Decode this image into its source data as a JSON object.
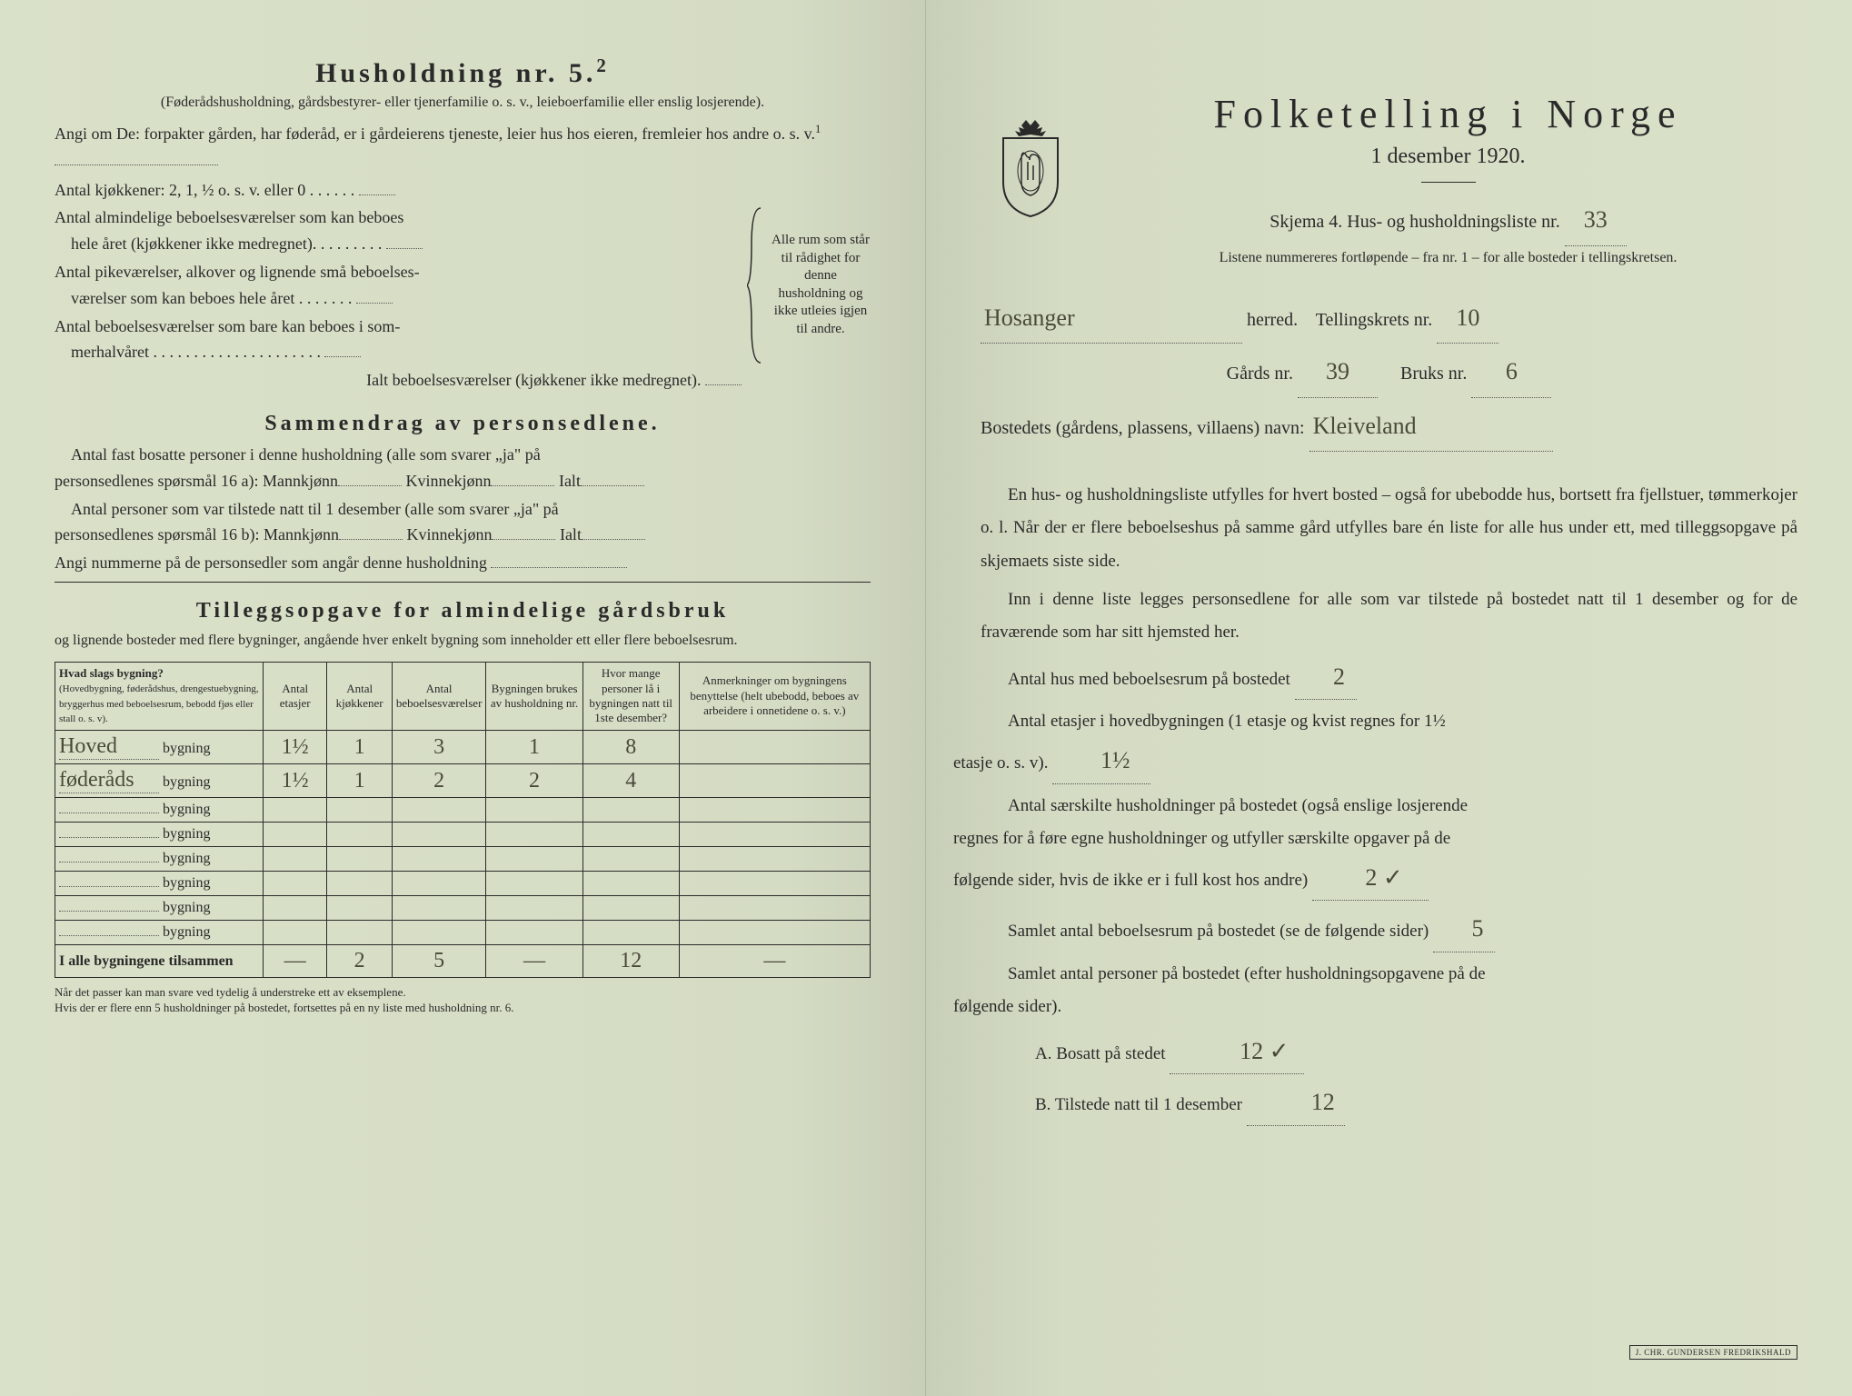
{
  "left": {
    "h5_title": "Husholdning nr. 5.",
    "h5_sup": "2",
    "h5_desc": "(Føderådshusholdning, gårdsbestyrer- eller tjenerfamilie o. s. v., leieboerfamilie eller enslig losjerende).",
    "angi_intro": "Angi om De: forpakter gården, har føderåd, er i gårdeierens tjeneste, leier hus hos eieren, fremleier hos andre o. s. v.",
    "angi_sup": "1",
    "kj_line": "Antal kjøkkener: 2, 1, ½ o. s. v. eller 0 . . . . . .",
    "alm_line1": "Antal almindelige beboelsesværelser som kan beboes",
    "alm_line2": "hele året (kjøkkener ikke medregnet). . . . . . . . .",
    "pike_line1": "Antal pikeværelser, alkover og lignende små beboelses-",
    "pike_line2": "værelser som kan beboes hele året . . . . . . .",
    "som_line1": "Antal beboelsesværelser som bare kan beboes i som-",
    "som_line2": "merhalvåret . . . . . . . . . . . . . . . . . . . . .",
    "ialt_line": "Ialt beboelsesværelser (kjøkkener ikke medregnet).",
    "brace_text": "Alle rum som står til rådighet for denne husholdning og ikke utleies igjen til andre.",
    "sammendrag_title": "Sammendrag av personsedlene.",
    "s_line1a": "Antal fast bosatte personer i denne husholdning (alle som svarer „ja\" på",
    "s_line1b": "personsedlenes spørsmål 16 a): Mannkjønn",
    "s_kvinne": "Kvinnekjønn",
    "s_ialt": "Ialt",
    "s_line2a": "Antal personer som var tilstede natt til 1 desember (alle som svarer „ja\" på",
    "s_line2b": "personsedlenes spørsmål 16 b): Mannkjønn",
    "s_line3": "Angi nummerne på de personsedler som angår denne husholdning",
    "tillegg_title": "Tilleggsopgave for almindelige gårdsbruk",
    "tillegg_desc": "og lignende bosteder med flere bygninger, angående hver enkelt bygning som inneholder ett eller flere beboelsesrum.",
    "table": {
      "col1_header": "Hvad slags bygning?",
      "col1_sub": "(Hovedbygning, føderådshus, drengestuebygning, bryggerhus med beboelsesrum, bebodd fjøs eller stall o. s. v).",
      "col2": "Antal etasjer",
      "col3": "Antal kjøkkener",
      "col4": "Antal beboelsesværelser",
      "col5": "Bygningen brukes av husholdning nr.",
      "col6": "Hvor mange personer lå i bygningen natt til 1ste desember?",
      "col7": "Anmerkninger om bygningens benyttelse (helt ubebodd, beboes av arbeidere i onnetidene o. s. v.)",
      "rows": [
        {
          "name": "Hoved",
          "suffix": "bygning",
          "etasjer": "1½",
          "kjokkener": "1",
          "vaerelser": "3",
          "hushold": "1",
          "personer": "8",
          "anm": ""
        },
        {
          "name": "føderåds",
          "suffix": "bygning",
          "etasjer": "1½",
          "kjokkener": "1",
          "vaerelser": "2",
          "hushold": "2",
          "personer": "4",
          "anm": ""
        },
        {
          "name": "",
          "suffix": "bygning",
          "etasjer": "",
          "kjokkener": "",
          "vaerelser": "",
          "hushold": "",
          "personer": "",
          "anm": ""
        },
        {
          "name": "",
          "suffix": "bygning",
          "etasjer": "",
          "kjokkener": "",
          "vaerelser": "",
          "hushold": "",
          "personer": "",
          "anm": ""
        },
        {
          "name": "",
          "suffix": "bygning",
          "etasjer": "",
          "kjokkener": "",
          "vaerelser": "",
          "hushold": "",
          "personer": "",
          "anm": ""
        },
        {
          "name": "",
          "suffix": "bygning",
          "etasjer": "",
          "kjokkener": "",
          "vaerelser": "",
          "hushold": "",
          "personer": "",
          "anm": ""
        },
        {
          "name": "",
          "suffix": "bygning",
          "etasjer": "",
          "kjokkener": "",
          "vaerelser": "",
          "hushold": "",
          "personer": "",
          "anm": ""
        },
        {
          "name": "",
          "suffix": "bygning",
          "etasjer": "",
          "kjokkener": "",
          "vaerelser": "",
          "hushold": "",
          "personer": "",
          "anm": ""
        }
      ],
      "total_label": "I alle bygningene tilsammen",
      "total": {
        "etasjer": "—",
        "kjokkener": "2",
        "vaerelser": "5",
        "hushold": "—",
        "personer": "12",
        "anm": "—"
      }
    },
    "footnote1": "Når det passer kan man svare ved tydelig å understreke ett av eksemplene.",
    "footnote2": "Hvis der er flere enn 5 husholdninger på bostedet, fortsettes på en ny liste med husholdning nr. 6."
  },
  "right": {
    "title": "Folketelling i Norge",
    "date": "1 desember 1920.",
    "skjema_line": "Skjema 4. Hus- og husholdningsliste nr.",
    "skjema_nr": "33",
    "listene_line": "Listene nummereres fortløpende – fra nr. 1 – for alle bosteder i tellingskretsen.",
    "herred_value": "Hosanger",
    "herred_label": "herred.",
    "tellingskrets_label": "Tellingskrets nr.",
    "tellingskrets_nr": "10",
    "gards_label": "Gårds nr.",
    "gards_nr": "39",
    "bruks_label": "Bruks nr.",
    "bruks_nr": "6",
    "bosted_label": "Bostedets (gårdens, plassens, villaens) navn:",
    "bosted_value": "Kleiveland",
    "para1": "En hus- og husholdningsliste utfylles for hvert bosted – også for ubebodde hus, bortsett fra fjellstuer, tømmerkojer o. l. Når der er flere beboelseshus på samme gård utfylles bare én liste for alle hus under ett, med tilleggsopgave på skjemaets siste side.",
    "para2": "Inn i denne liste legges personsedlene for alle som var tilstede på bostedet natt til 1 desember og for de fraværende som har sitt hjemsted her.",
    "q_hus_label": "Antal hus med beboelsesrum på bostedet",
    "q_hus_val": "2",
    "q_etasjer_label1": "Antal etasjer i hovedbygningen (1 etasje og kvist regnes for 1½",
    "q_etasjer_label2": "etasje o. s. v).",
    "q_etasjer_val": "1½",
    "q_hushold_label1": "Antal særskilte husholdninger på bostedet (også enslige losjerende",
    "q_hushold_label2": "regnes for å føre egne husholdninger og utfyller særskilte opgaver på de",
    "q_hushold_label3": "følgende sider, hvis de ikke er i full kost hos andre)",
    "q_hushold_val": "2 ✓",
    "q_samlet_label": "Samlet antal beboelsesrum på bostedet (se de følgende sider)",
    "q_samlet_val": "5",
    "q_personer_label1": "Samlet antal personer på bostedet (efter husholdningsopgavene på de",
    "q_personer_label2": "følgende sider).",
    "a_label": "A. Bosatt på stedet",
    "a_val": "12 ✓",
    "b_label": "B. Tilstede natt til 1 desember",
    "b_val": "12",
    "stamp": "J. CHR. GUNDERSEN FREDRIKSHALD"
  },
  "colors": {
    "paper": "#d8dfc8",
    "ink": "#2a2a2a",
    "pencil": "#4a4a3a"
  }
}
